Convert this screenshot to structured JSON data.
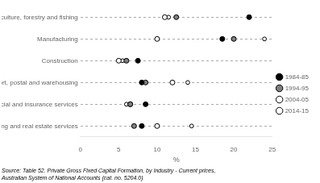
{
  "chart_data": {
    "type": "dot",
    "categories": [
      "Agriculture, forestry and fishing",
      "Manufacturing",
      "Construction",
      "Transport, postal and warehousing",
      "Financial and insurance services",
      "Rental, hiring and real estate services"
    ],
    "series": [
      {
        "name": "1984-85",
        "color": "#000000",
        "marker": "circle",
        "values": [
          22.0,
          18.5,
          7.5,
          8.0,
          8.5,
          8.0
        ]
      },
      {
        "name": "1994-95",
        "color": "#808080",
        "marker": "circle",
        "values": [
          12.5,
          20.0,
          6.0,
          8.5,
          6.5,
          7.0
        ]
      },
      {
        "name": "2004-05",
        "color": "#ffffff",
        "marker": "circle",
        "values": [
          11.0,
          10.0,
          5.0,
          12.0,
          6.5,
          10.0
        ]
      },
      {
        "name": "2014-15",
        "color": "#ffffff",
        "marker": "circle",
        "values": [
          11.5,
          24.0,
          5.5,
          14.0,
          6.0,
          14.5
        ]
      }
    ],
    "xlabel": "%",
    "xlim": [
      0,
      25
    ],
    "xticks": [
      0,
      5,
      10,
      15,
      20,
      25
    ],
    "grid": true,
    "legend": "right",
    "annotations": [
      "Source: Table 52. Private Gross Fixed Capital Formation, by Industry - Current prices,\nAustralian System of National Accounts (cat. no. 5204.0)"
    ]
  }
}
